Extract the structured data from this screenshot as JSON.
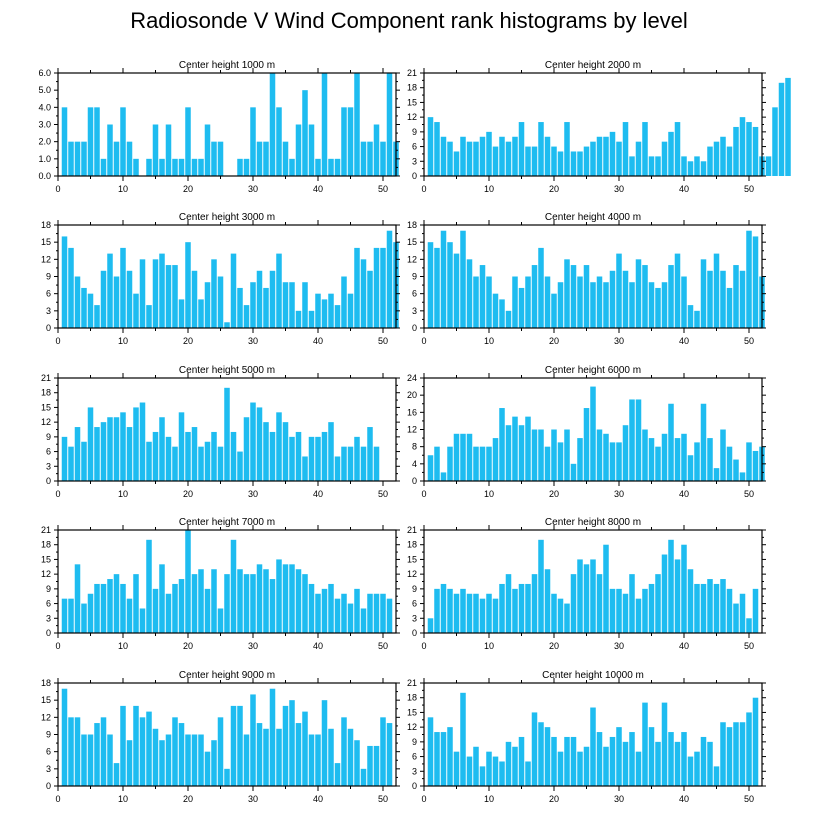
{
  "title": "Radiosonde V Wind Component rank histograms by level",
  "bar_color": "#1ebcf0",
  "chart_data": [
    {
      "type": "bar",
      "title": "Center height 1000 m",
      "ylim": [
        0,
        6
      ],
      "yticks": [
        "0.0",
        "1.0",
        "2.0",
        "3.0",
        "4.0",
        "5.0",
        "6.0"
      ],
      "xlim": [
        0,
        52
      ],
      "xticks": [
        "0",
        "10",
        "20",
        "30",
        "40",
        "50"
      ],
      "values": [
        4,
        2,
        2,
        2,
        4,
        4,
        1,
        3,
        2,
        4,
        2,
        1,
        0,
        1,
        3,
        1,
        3,
        1,
        1,
        4,
        1,
        1,
        3,
        2,
        2,
        0,
        0,
        1,
        1,
        4,
        2,
        2,
        6,
        4,
        2,
        1,
        3,
        5,
        3,
        1,
        6,
        1,
        1,
        4,
        4,
        6,
        2,
        2,
        3,
        2,
        6,
        2
      ]
    },
    {
      "type": "bar",
      "title": "Center height 2000 m",
      "ylim": [
        0,
        21
      ],
      "yticks": [
        "0",
        "3",
        "6",
        "9",
        "12",
        "15",
        "18",
        "21"
      ],
      "xlim": [
        0,
        52
      ],
      "xticks": [
        "0",
        "10",
        "20",
        "30",
        "40",
        "50"
      ],
      "values": [
        12,
        11,
        8,
        7,
        5,
        8,
        7,
        7,
        8,
        9,
        6,
        8,
        7,
        8,
        11,
        6,
        6,
        11,
        8,
        6,
        5,
        11,
        5,
        5,
        6,
        7,
        8,
        8,
        9,
        7,
        11,
        4,
        7,
        11,
        4,
        4,
        7,
        9,
        11,
        4,
        3,
        4,
        3,
        6,
        7,
        8,
        6,
        10,
        12,
        11,
        10,
        4,
        4,
        14,
        19,
        20
      ]
    },
    {
      "type": "bar",
      "title": "Center height 3000 m",
      "ylim": [
        0,
        18
      ],
      "yticks": [
        "0",
        "3",
        "6",
        "9",
        "12",
        "15",
        "18"
      ],
      "xlim": [
        0,
        52
      ],
      "xticks": [
        "0",
        "10",
        "20",
        "30",
        "40",
        "50"
      ],
      "values": [
        16,
        14,
        9,
        7,
        6,
        4,
        10,
        13,
        9,
        14,
        10,
        6,
        12,
        4,
        12,
        13,
        11,
        11,
        5,
        15,
        10,
        5,
        8,
        12,
        9,
        1,
        13,
        7,
        4,
        8,
        10,
        7,
        10,
        13,
        8,
        8,
        3,
        8,
        3,
        6,
        5,
        6,
        4,
        9,
        6,
        14,
        12,
        10,
        14,
        14,
        17,
        15
      ]
    },
    {
      "type": "bar",
      "title": "Center height 4000 m",
      "ylim": [
        0,
        18
      ],
      "yticks": [
        "0",
        "3",
        "6",
        "9",
        "12",
        "15",
        "18"
      ],
      "xlim": [
        0,
        52
      ],
      "xticks": [
        "0",
        "10",
        "20",
        "30",
        "40",
        "50"
      ],
      "values": [
        15,
        14,
        17,
        15,
        13,
        17,
        12,
        9,
        11,
        9,
        6,
        5,
        3,
        9,
        7,
        9,
        11,
        14,
        9,
        6,
        8,
        12,
        11,
        9,
        11,
        8,
        9,
        8,
        10,
        13,
        10,
        8,
        12,
        11,
        8,
        7,
        8,
        11,
        13,
        9,
        4,
        3,
        12,
        10,
        13,
        10,
        7,
        11,
        10,
        17,
        16,
        9
      ]
    },
    {
      "type": "bar",
      "title": "Center height 5000 m",
      "ylim": [
        0,
        21
      ],
      "yticks": [
        "0",
        "3",
        "6",
        "9",
        "12",
        "15",
        "18",
        "21"
      ],
      "xlim": [
        0,
        52
      ],
      "xticks": [
        "0",
        "10",
        "20",
        "30",
        "40",
        "50"
      ],
      "values": [
        9,
        7,
        11,
        8,
        15,
        11,
        12,
        13,
        13,
        14,
        11,
        15,
        16,
        8,
        10,
        13,
        9,
        7,
        14,
        10,
        11,
        7,
        8,
        10,
        7,
        19,
        10,
        6,
        13,
        16,
        15,
        12,
        10,
        14,
        12,
        9,
        10,
        5,
        9,
        9,
        10,
        12,
        5,
        7,
        7,
        9,
        7,
        11,
        7
      ]
    },
    {
      "type": "bar",
      "title": "Center height 6000 m",
      "ylim": [
        0,
        24
      ],
      "yticks": [
        "0",
        "4",
        "8",
        "12",
        "16",
        "20",
        "24"
      ],
      "xlim": [
        0,
        52
      ],
      "xticks": [
        "0",
        "10",
        "20",
        "30",
        "40",
        "50"
      ],
      "values": [
        6,
        8,
        2,
        8,
        11,
        11,
        11,
        8,
        8,
        8,
        10,
        17,
        13,
        15,
        13,
        15,
        12,
        12,
        8,
        12,
        9,
        12,
        4,
        10,
        17,
        22,
        12,
        11,
        9,
        9,
        13,
        19,
        19,
        12,
        10,
        8,
        11,
        18,
        10,
        11,
        6,
        9,
        18,
        10,
        3,
        12,
        8,
        5,
        2,
        9,
        7,
        8
      ]
    },
    {
      "type": "bar",
      "title": "Center height 7000 m",
      "ylim": [
        0,
        21
      ],
      "yticks": [
        "0",
        "3",
        "6",
        "9",
        "12",
        "15",
        "18",
        "21"
      ],
      "xlim": [
        0,
        52
      ],
      "xticks": [
        "0",
        "10",
        "20",
        "30",
        "40",
        "50"
      ],
      "values": [
        7,
        7,
        14,
        6,
        8,
        10,
        10,
        11,
        12,
        10,
        7,
        12,
        5,
        19,
        9,
        14,
        8,
        10,
        11,
        21,
        12,
        13,
        9,
        13,
        5,
        12,
        19,
        13,
        12,
        12,
        14,
        13,
        11,
        15,
        14,
        14,
        13,
        12,
        10,
        8,
        9,
        10,
        7,
        8,
        6,
        9,
        5,
        8,
        8,
        8,
        7
      ]
    },
    {
      "type": "bar",
      "title": "Center height 8000 m",
      "ylim": [
        0,
        21
      ],
      "yticks": [
        "0",
        "3",
        "6",
        "9",
        "12",
        "15",
        "18",
        "21"
      ],
      "xlim": [
        0,
        52
      ],
      "xticks": [
        "0",
        "10",
        "20",
        "30",
        "40",
        "50"
      ],
      "values": [
        3,
        9,
        10,
        9,
        8,
        9,
        8,
        8,
        7,
        8,
        7,
        10,
        12,
        9,
        10,
        10,
        12,
        19,
        13,
        8,
        7,
        6,
        12,
        15,
        14,
        15,
        12,
        18,
        9,
        9,
        8,
        12,
        7,
        9,
        10,
        12,
        16,
        19,
        15,
        18,
        13,
        10,
        10,
        11,
        10,
        11,
        9,
        6,
        8,
        3,
        9
      ]
    },
    {
      "type": "bar",
      "title": "Center height 9000 m",
      "ylim": [
        0,
        18
      ],
      "yticks": [
        "0",
        "3",
        "6",
        "9",
        "12",
        "15",
        "18"
      ],
      "xlim": [
        0,
        52
      ],
      "xticks": [
        "0",
        "10",
        "20",
        "30",
        "40",
        "50"
      ],
      "values": [
        17,
        12,
        12,
        9,
        9,
        11,
        12,
        9,
        4,
        14,
        8,
        14,
        12,
        13,
        10,
        8,
        9,
        12,
        11,
        9,
        9,
        9,
        6,
        8,
        12,
        3,
        14,
        14,
        9,
        16,
        11,
        10,
        17,
        10,
        14,
        15,
        11,
        13,
        9,
        9,
        15,
        10,
        4,
        12,
        10,
        8,
        3,
        7,
        7,
        12,
        11
      ]
    },
    {
      "type": "bar",
      "title": "Center height 10000 m",
      "ylim": [
        0,
        21
      ],
      "yticks": [
        "0",
        "3",
        "6",
        "9",
        "12",
        "15",
        "18",
        "21"
      ],
      "xlim": [
        0,
        52
      ],
      "xticks": [
        "0",
        "10",
        "20",
        "30",
        "40",
        "50"
      ],
      "values": [
        14,
        11,
        11,
        12,
        7,
        19,
        6,
        8,
        4,
        7,
        6,
        5,
        9,
        8,
        10,
        5,
        15,
        13,
        12,
        10,
        7,
        10,
        10,
        7,
        8,
        16,
        11,
        8,
        10,
        12,
        9,
        11,
        7,
        17,
        12,
        9,
        17,
        11,
        9,
        11,
        6,
        7,
        10,
        9,
        4,
        13,
        12,
        13,
        13,
        15,
        18
      ]
    }
  ]
}
